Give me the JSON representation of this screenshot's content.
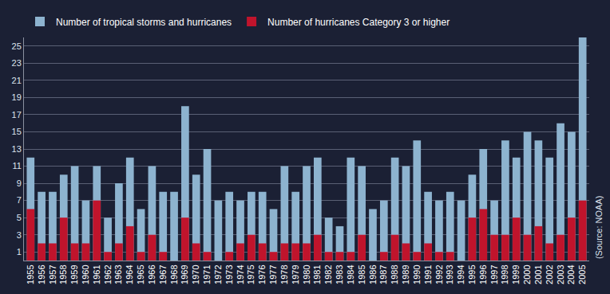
{
  "chart_data": {
    "type": "bar",
    "categories": [
      "1955",
      "1956",
      "1957",
      "1958",
      "1959",
      "1960",
      "1961",
      "1962",
      "1963",
      "1964",
      "1965",
      "1966",
      "1967",
      "1968",
      "1969",
      "1970",
      "1971",
      "1972",
      "1973",
      "1974",
      "1975",
      "1976",
      "1977",
      "1978",
      "1979",
      "1980",
      "1981",
      "1982",
      "1983",
      "1984",
      "1985",
      "1986",
      "1987",
      "1988",
      "1989",
      "1990",
      "1991",
      "1992",
      "1993",
      "1994",
      "1995",
      "1996",
      "1997",
      "1998",
      "1999",
      "2000",
      "2001",
      "2002",
      "2003",
      "2004",
      "2005"
    ],
    "series": [
      {
        "name": "Number of tropical storms and hurricanes",
        "color": "#8db3cf",
        "values": [
          12,
          8,
          8,
          10,
          11,
          7,
          11,
          5,
          9,
          12,
          6,
          11,
          8,
          8,
          18,
          10,
          13,
          7,
          8,
          7,
          8,
          8,
          6,
          11,
          8,
          11,
          12,
          5,
          4,
          12,
          11,
          6,
          7,
          12,
          11,
          14,
          8,
          7,
          8,
          7,
          10,
          13,
          7,
          14,
          12,
          15,
          14,
          12,
          16,
          15,
          26
        ]
      },
      {
        "name": "Number of hurricanes Category 3 or higher",
        "color": "#c0142c",
        "values": [
          6,
          2,
          2,
          5,
          2,
          2,
          7,
          1,
          2,
          4,
          1,
          3,
          1,
          0,
          5,
          2,
          1,
          0,
          1,
          2,
          3,
          2,
          1,
          2,
          2,
          2,
          3,
          1,
          1,
          1,
          3,
          0,
          1,
          3,
          2,
          1,
          2,
          1,
          1,
          0,
          5,
          6,
          3,
          3,
          5,
          3,
          4,
          2,
          3,
          5,
          7
        ]
      }
    ],
    "ylim": [
      0,
      26
    ],
    "yticks": [
      1,
      3,
      5,
      7,
      9,
      11,
      13,
      15,
      17,
      19,
      21,
      23,
      25
    ],
    "grid": true,
    "stacked": false,
    "legend": "top left",
    "annotations": [
      "(Source: NOAA)"
    ]
  }
}
